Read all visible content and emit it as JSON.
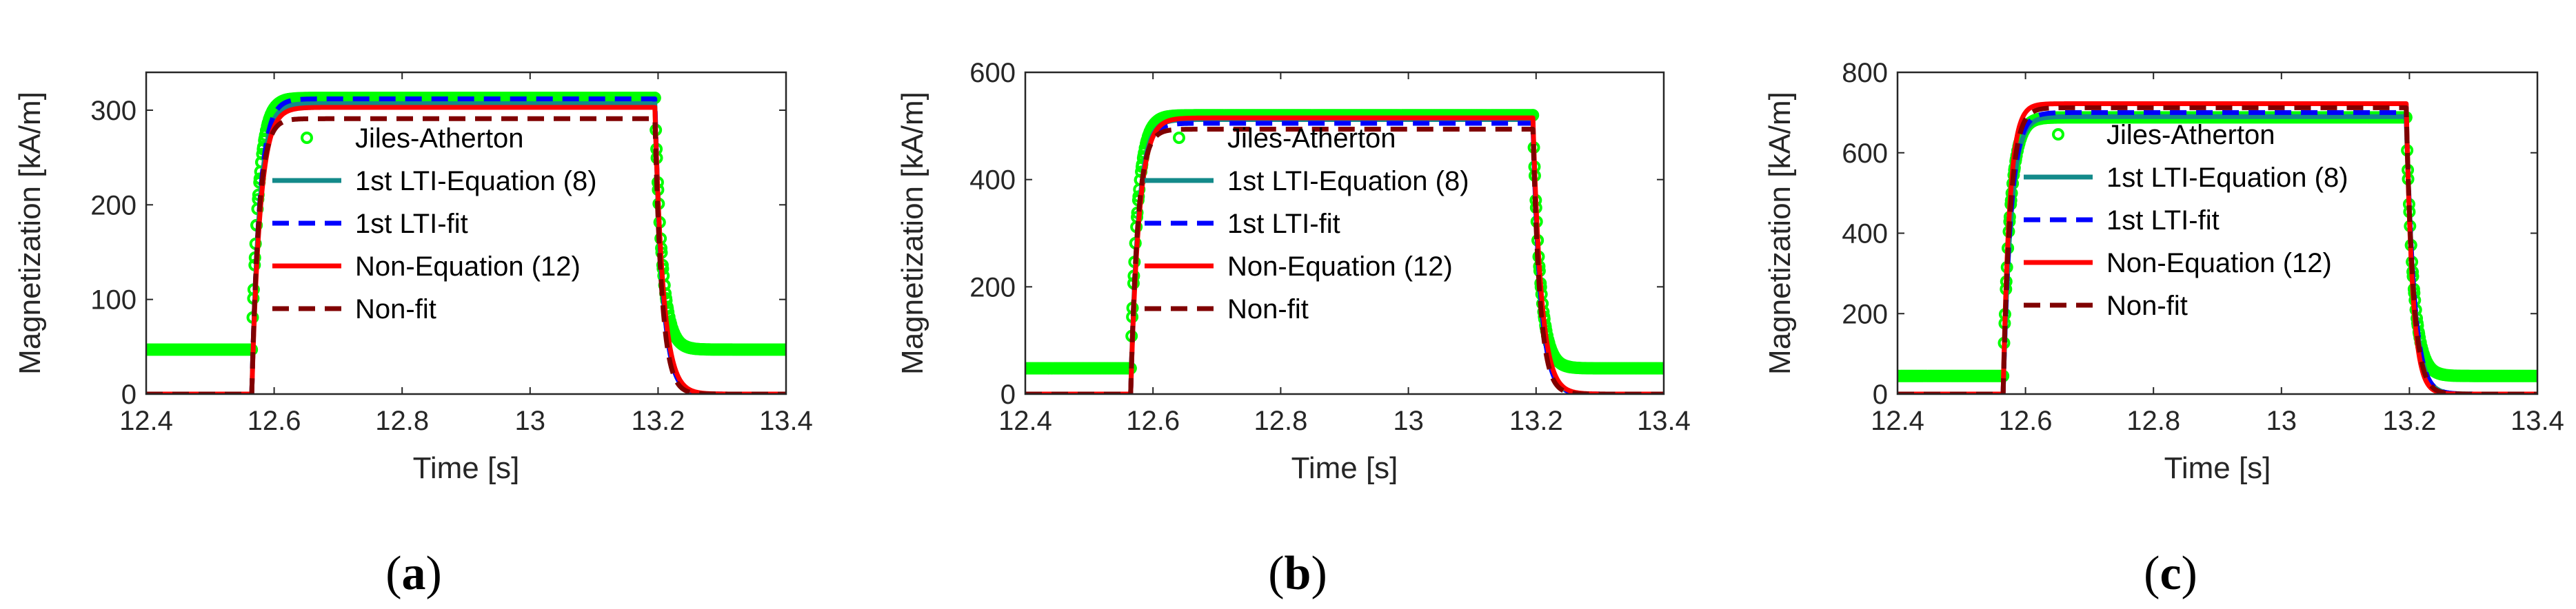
{
  "colors": {
    "jiles_atherton": "#00ff00",
    "lti_equation": "#138a8a",
    "lti_fit": "#0000ff",
    "non_equation": "#ff0000",
    "non_fit": "#800000",
    "axis": "#262626"
  },
  "chart_data": [
    {
      "type": "line",
      "caption": "a",
      "xlabel": "Time [s]",
      "ylabel": "Magnetization [kA/m]",
      "xlim": [
        12.4,
        13.4
      ],
      "ylim": [
        0,
        340
      ],
      "xticks": [
        12.4,
        12.6,
        12.8,
        13,
        13.2,
        13.4
      ],
      "xtick_labels": [
        "12.4",
        "12.6",
        "12.8",
        "13",
        "13.2",
        "13.4"
      ],
      "yticks": [
        0,
        100,
        200,
        300
      ],
      "ytick_labels": [
        "0",
        "100",
        "200",
        "300"
      ],
      "pulse": {
        "t_on": 12.565,
        "t_off": 13.195
      },
      "legend_location": "center",
      "series": [
        {
          "name": "Jiles-Atherton",
          "style": "markers",
          "base": 47,
          "plateau": 313,
          "tau": 0.011,
          "final": 47
        },
        {
          "name": "1st LTI-Equation (8)",
          "style": "solid",
          "base": 0,
          "plateau": 307,
          "tau": 0.012,
          "final": 0
        },
        {
          "name": "1st LTI-fit",
          "style": "dashed",
          "base": 0,
          "plateau": 312,
          "tau": 0.012,
          "final": 0
        },
        {
          "name": "Non-Equation (12)",
          "style": "solid",
          "base": 0,
          "plateau": 303,
          "tau": 0.013,
          "final": 0
        },
        {
          "name": "Non-fit",
          "style": "dashed",
          "base": 0,
          "plateau": 291,
          "tau": 0.011,
          "final": 0
        }
      ]
    },
    {
      "type": "line",
      "caption": "b",
      "xlabel": "Time [s]",
      "ylabel": "Magnetization [kA/m]",
      "xlim": [
        12.4,
        13.4
      ],
      "ylim": [
        0,
        600
      ],
      "xticks": [
        12.4,
        12.6,
        12.8,
        13,
        13.2,
        13.4
      ],
      "xtick_labels": [
        "12.4",
        "12.6",
        "12.8",
        "13",
        "13.2",
        "13.4"
      ],
      "yticks": [
        0,
        200,
        400,
        600
      ],
      "ytick_labels": [
        "0",
        "200",
        "400",
        "600"
      ],
      "pulse": {
        "t_on": 12.565,
        "t_off": 13.195
      },
      "legend_location": "center",
      "series": [
        {
          "name": "Jiles-Atherton",
          "style": "markers",
          "base": 48,
          "plateau": 520,
          "tau": 0.011,
          "final": 48
        },
        {
          "name": "1st LTI-Equation (8)",
          "style": "solid",
          "base": 0,
          "plateau": 512,
          "tau": 0.012,
          "final": 0
        },
        {
          "name": "1st LTI-fit",
          "style": "dashed",
          "base": 0,
          "plateau": 505,
          "tau": 0.012,
          "final": 0
        },
        {
          "name": "Non-Equation (12)",
          "style": "solid",
          "base": 0,
          "plateau": 515,
          "tau": 0.013,
          "final": 0
        },
        {
          "name": "Non-fit",
          "style": "dashed",
          "base": 0,
          "plateau": 494,
          "tau": 0.011,
          "final": 0
        }
      ]
    },
    {
      "type": "line",
      "caption": "c",
      "xlabel": "Time [s]",
      "ylabel": "Magnetization [kA/m]",
      "xlim": [
        12.4,
        13.4
      ],
      "ylim": [
        0,
        800
      ],
      "xticks": [
        12.4,
        12.6,
        12.8,
        13,
        13.2,
        13.4
      ],
      "xtick_labels": [
        "12.4",
        "12.6",
        "12.8",
        "13",
        "13.2",
        "13.4"
      ],
      "yticks": [
        0,
        200,
        400,
        600,
        800
      ],
      "ytick_labels": [
        "0",
        "200",
        "400",
        "600",
        "800"
      ],
      "pulse": {
        "t_on": 12.565,
        "t_off": 13.195
      },
      "legend_location": "center",
      "series": [
        {
          "name": "Jiles-Atherton",
          "style": "markers",
          "base": 45,
          "plateau": 688,
          "tau": 0.011,
          "final": 45
        },
        {
          "name": "1st LTI-Equation (8)",
          "style": "solid",
          "base": 0,
          "plateau": 690,
          "tau": 0.012,
          "final": 0
        },
        {
          "name": "1st LTI-fit",
          "style": "dashed",
          "base": 0,
          "plateau": 700,
          "tau": 0.012,
          "final": 0
        },
        {
          "name": "Non-Equation (12)",
          "style": "solid",
          "base": 0,
          "plateau": 722,
          "tau": 0.01,
          "final": 0
        },
        {
          "name": "Non-fit",
          "style": "dashed",
          "base": 0,
          "plateau": 712,
          "tau": 0.011,
          "final": 0
        }
      ]
    }
  ]
}
